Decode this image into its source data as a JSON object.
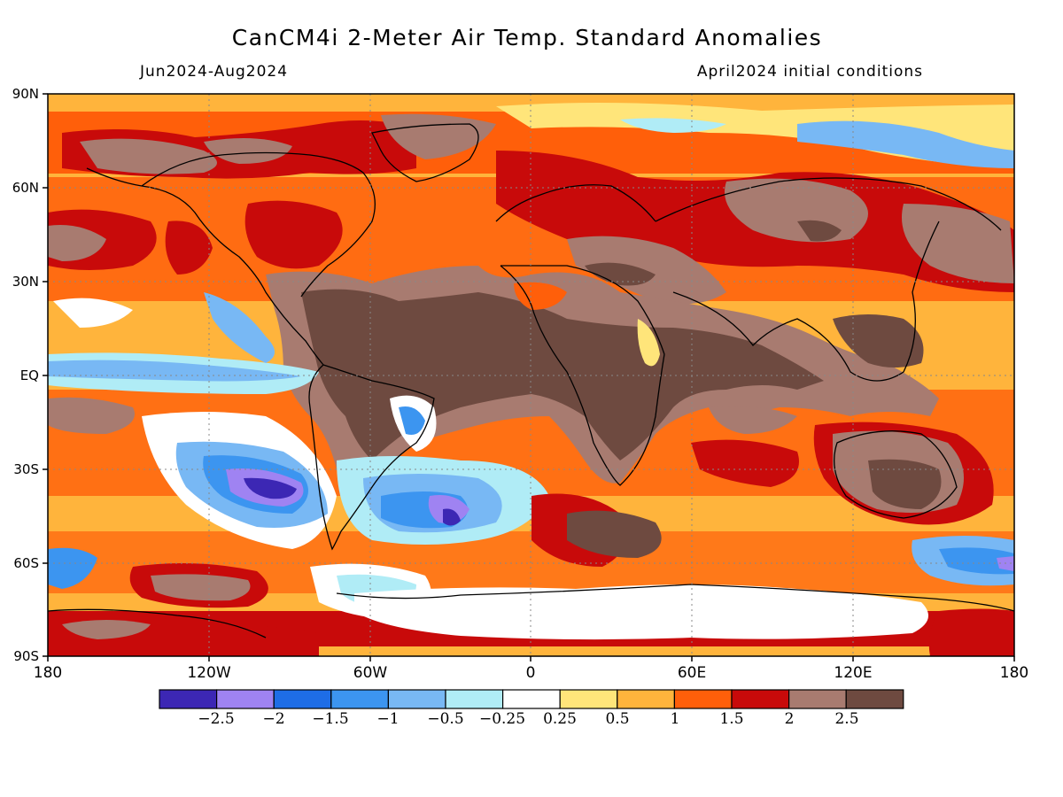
{
  "header": {
    "title": "CanCM4i 2-Meter Air Temp. Standard Anomalies",
    "period": "Jun2024-Aug2024",
    "initial_conditions": "April2024 initial conditions"
  },
  "map": {
    "lat_labels": [
      "90N",
      "60N",
      "30N",
      "EQ",
      "30S",
      "60S",
      "90S"
    ],
    "lon_labels": [
      "180",
      "120W",
      "60W",
      "0",
      "60E",
      "120E",
      "180"
    ]
  },
  "colorbar": {
    "labels": [
      "−2.5",
      "−2",
      "−1.5",
      "−1",
      "−0.5",
      "−0.25",
      "0.25",
      "0.5",
      "1",
      "1.5",
      "2",
      "2.5"
    ],
    "colors": [
      "#3c27b4",
      "#9f83f2",
      "#1e6de6",
      "#3c95f0",
      "#78b8f4",
      "#b0ecf6",
      "#ffffff",
      "#ffe57a",
      "#ffb43c",
      "#ff5f0a",
      "#c80a0a",
      "#a87b70",
      "#6e4a40"
    ]
  }
}
